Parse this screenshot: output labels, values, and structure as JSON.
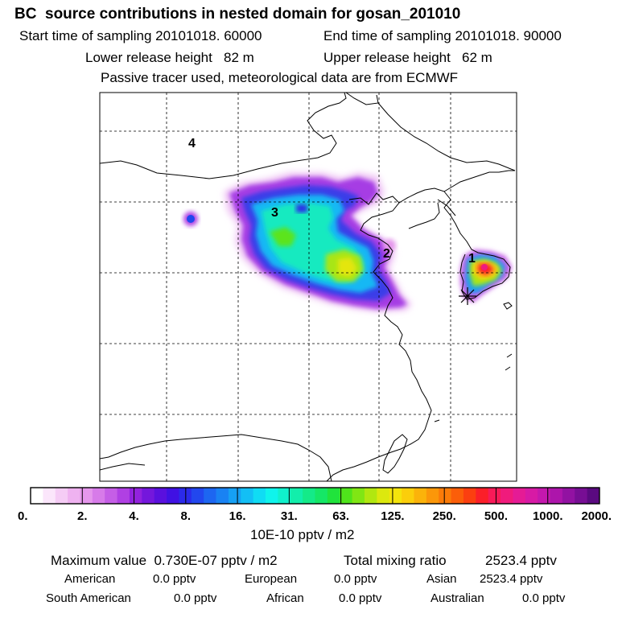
{
  "header": {
    "title": "BC  source contributions in nested domain for gosan_201010",
    "start_time": "Start time of sampling 20101018. 60000",
    "end_time": "End time of sampling 20101018. 90000",
    "lower_height": "Lower release height   82 m",
    "upper_height": "Upper release height   62 m",
    "note": "Passive tracer used, meteorological data are from ECMWF"
  },
  "map": {
    "region_labels": [
      "4",
      "3",
      "2",
      "1"
    ],
    "receptor_marker": "star-marker"
  },
  "colorbar": {
    "tick_labels": [
      "0.",
      "2.",
      "4.",
      "8.",
      "16.",
      "31.",
      "63.",
      "125.",
      "250.",
      "500.",
      "1000.",
      "2000."
    ],
    "unit": "10E-10 pptv / m2",
    "colors": [
      "#ffffff",
      "#fbe6fb",
      "#f5ccf5",
      "#efb2f0",
      "#e597ec",
      "#d77be9",
      "#c55ee6",
      "#b040e3",
      "#9222de",
      "#7417dc",
      "#5a10de",
      "#4011e3",
      "#2b2aea",
      "#2247ee",
      "#1d66f1",
      "#1982f3",
      "#16a0f4",
      "#13bff5",
      "#10dcf4",
      "#0ff4ec",
      "#10f1cc",
      "#12eeab",
      "#14ea88",
      "#15e766",
      "#20e33c",
      "#4fe41b",
      "#80e614",
      "#b1e710",
      "#dce80e",
      "#f4e40c",
      "#fbce0b",
      "#fbb30a",
      "#fb9709",
      "#fb7b08",
      "#fb5e09",
      "#fb3f10",
      "#fb1f29",
      "#f81a58",
      "#f01b7c",
      "#e51b95",
      "#d71aa5",
      "#c418ad",
      "#ad15ab",
      "#9212a2",
      "#770e94",
      "#5a0a80"
    ]
  },
  "stats": {
    "max_label": "Maximum value  0.730E-07 pptv / m2",
    "total_label": "Total mixing ratio",
    "total_value": "2523.4 pptv",
    "american_label": "American",
    "american_value": "0.0 pptv",
    "european_label": "European",
    "european_value": "0.0 pptv",
    "asian_label": "Asian",
    "asian_value": "2523.4 pptv",
    "south_american_label": "South American",
    "south_american_value": "0.0 pptv",
    "african_label": "African",
    "african_value": "0.0 pptv",
    "australian_label": "Australian",
    "australian_value": "0.0 pptv"
  }
}
